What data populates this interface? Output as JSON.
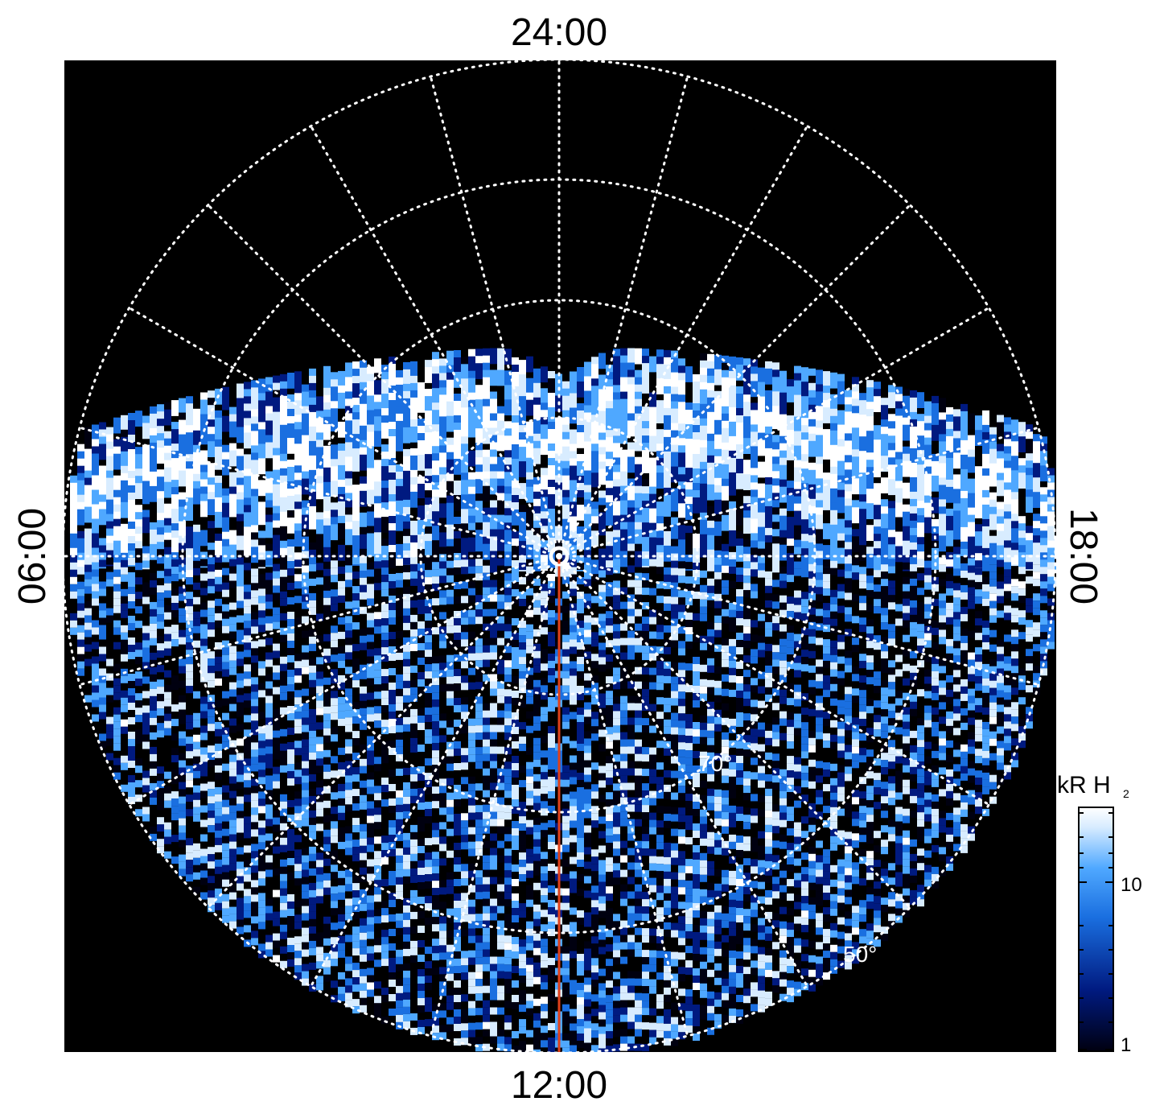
{
  "figure": {
    "local_time_labels": {
      "top": "24:00",
      "bottom": "12:00",
      "left": "06:00",
      "right": "18:00"
    },
    "latitude_labels": {
      "inner": "70°",
      "outer": "50°"
    },
    "colorbar": {
      "title_main": "kR H",
      "title_sub": "2",
      "ticks": [
        "10",
        "1"
      ],
      "colors": [
        "#000010",
        "#001a80",
        "#1a6fe0",
        "#4fa8ff",
        "#d8ecff",
        "#ffffff"
      ]
    },
    "colors": {
      "background": "#000000",
      "grid": "#ffffff",
      "meridian": "#e0401a"
    }
  }
}
